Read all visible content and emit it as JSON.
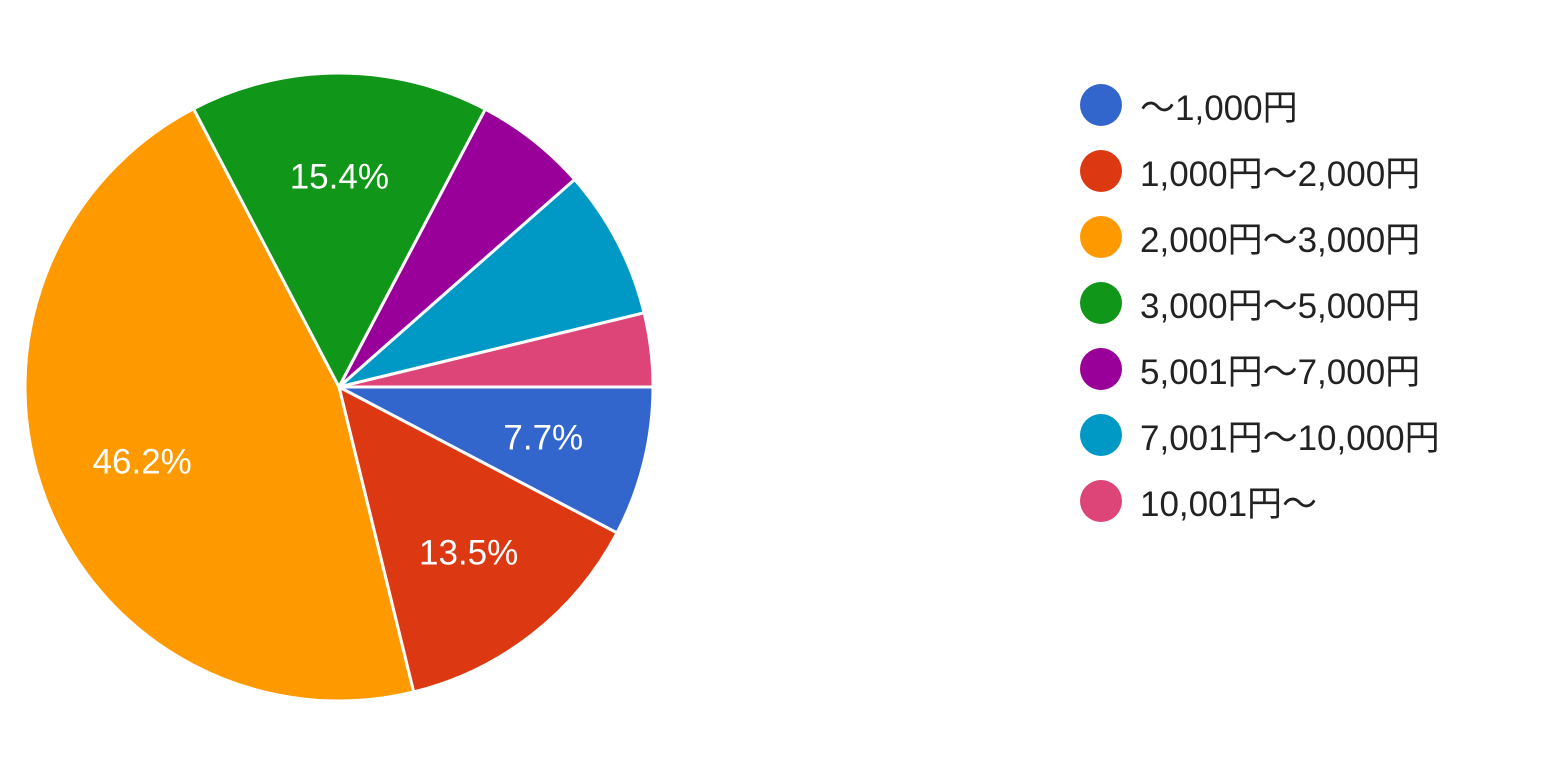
{
  "chart_data": {
    "type": "pie",
    "title": "",
    "start_angle": "3 o'clock, clockwise",
    "legend_position": "right",
    "categories": [
      "〜1,000円",
      "1,000円〜2,000円",
      "2,000円〜3,000円",
      "3,000円〜5,000円",
      "5,001円〜7,000円",
      "7,001円〜10,000円",
      "10,001円〜"
    ],
    "values": [
      7.7,
      13.5,
      46.2,
      15.4,
      5.8,
      7.7,
      3.8
    ],
    "labels": [
      "7.7%",
      "13.5%",
      "46.2%",
      "15.4%",
      "",
      "",
      ""
    ],
    "colors": [
      "#3366cc",
      "#dc3912",
      "#ff9900",
      "#109618",
      "#990099",
      "#0099c6",
      "#dd4477"
    ]
  }
}
